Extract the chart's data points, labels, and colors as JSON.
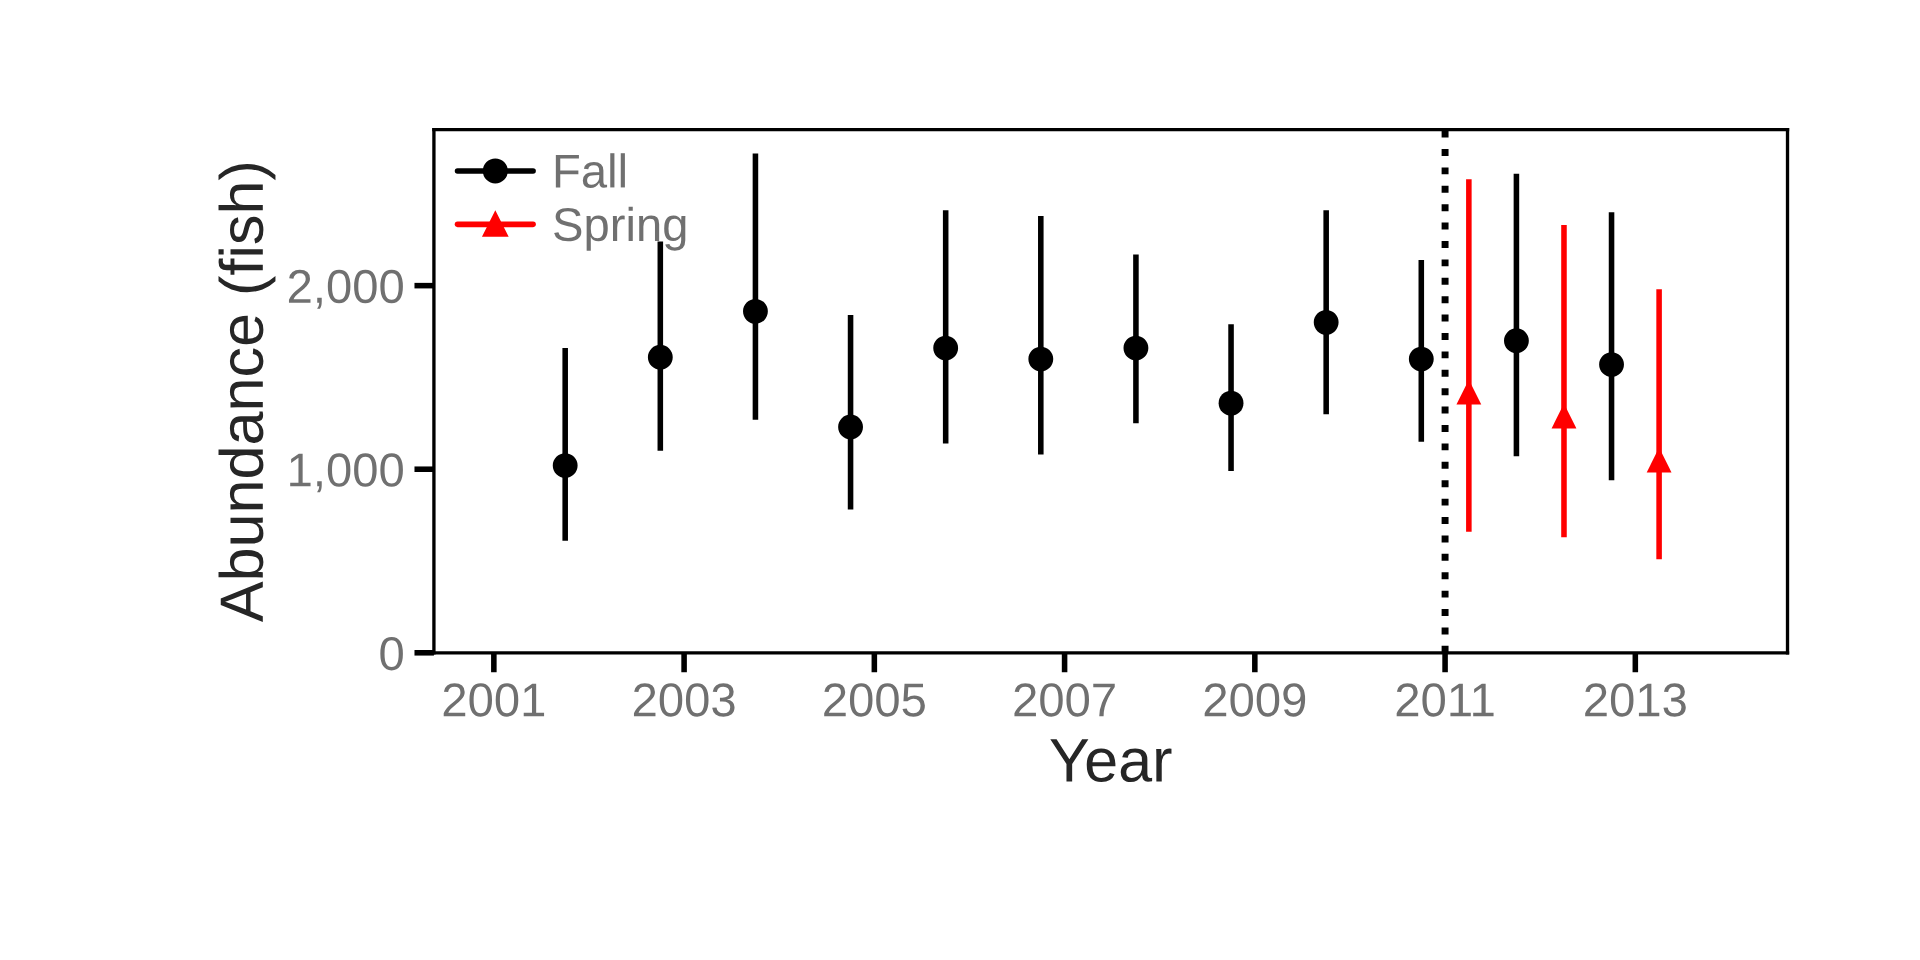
{
  "chart_data": {
    "type": "scatter",
    "xlabel": "Year",
    "ylabel": "Abundance (fish)",
    "xlim": [
      2000.37,
      2014.6
    ],
    "xticks": [
      2001,
      2003,
      2005,
      2007,
      2009,
      2011,
      2013
    ],
    "ylim": [
      0,
      2850
    ],
    "yticks": [
      {
        "value": 0,
        "label": "0"
      },
      {
        "value": 1000,
        "label": "1,000"
      },
      {
        "value": 2000,
        "label": "2,000"
      }
    ],
    "grid": false,
    "legend": "top left",
    "ref_lines": [
      {
        "axis": "x",
        "value": 2011,
        "color": "#000000",
        "line_style": "dotted"
      }
    ],
    "series": [
      {
        "name": "Fall",
        "color": "#000000",
        "marker": "circle",
        "x": [
          2001.75,
          2002.75,
          2003.75,
          2004.75,
          2005.75,
          2006.75,
          2007.75,
          2008.75,
          2009.75,
          2010.75,
          2011.75,
          2012.75
        ],
        "values": [
          1020,
          1610,
          1860,
          1230,
          1660,
          1600,
          1660,
          1360,
          1800,
          1600,
          1700,
          1570
        ],
        "errors": [
          [
            610,
            1660
          ],
          [
            1100,
            2240
          ],
          [
            1270,
            2720
          ],
          [
            780,
            1840
          ],
          [
            1140,
            2410
          ],
          [
            1080,
            2380
          ],
          [
            1250,
            2170
          ],
          [
            990,
            1790
          ],
          [
            1300,
            2410
          ],
          [
            1150,
            2140
          ],
          [
            1070,
            2610
          ],
          [
            940,
            2400
          ]
        ]
      },
      {
        "name": "Spring",
        "color": "#ff0000",
        "marker": "triangle",
        "x": [
          2011.25,
          2012.25,
          2013.25
        ],
        "values": [
          1420,
          1290,
          1050
        ],
        "errors": [
          [
            660,
            2580
          ],
          [
            630,
            2330
          ],
          [
            510,
            1980
          ]
        ]
      }
    ]
  }
}
